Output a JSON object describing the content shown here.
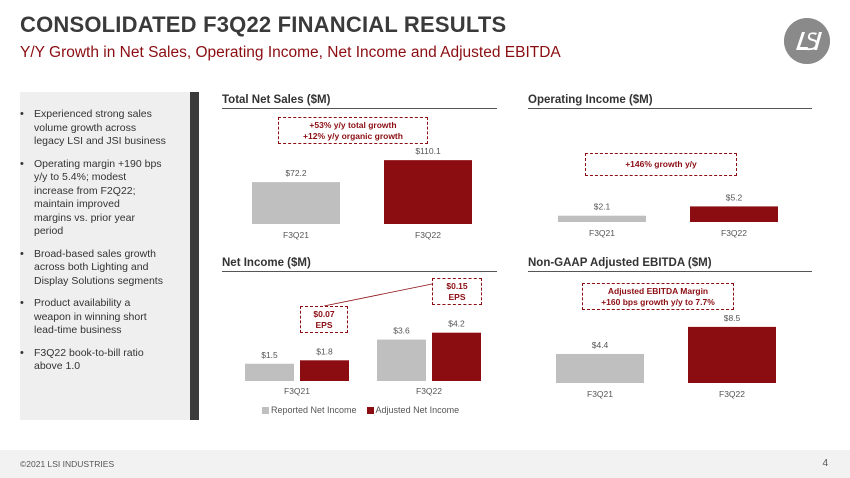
{
  "header": {
    "title": "CONSOLIDATED F3Q22 FINANCIAL RESULTS",
    "subtitle": "Y/Y Growth in Net Sales, Operating Income, Net Income and Adjusted EBITDA",
    "logo_icon": "lsi-logo-icon"
  },
  "sidebar": {
    "bullets": [
      [
        "Experienced strong sales",
        "volume growth across",
        "legacy LSI and JSI business"
      ],
      [
        "Operating margin +190 bps",
        "y/y to 5.4%; modest",
        "increase from F2Q22;",
        "maintain improved",
        "margins vs. prior year",
        "period"
      ],
      [
        "Broad-based sales growth",
        "across both Lighting and",
        "Display Solutions segments"
      ],
      [
        "Product availability a",
        "weapon in winning short",
        "lead-time business"
      ],
      [
        "F3Q22 book-to-bill ratio",
        "above 1.0"
      ]
    ]
  },
  "colors": {
    "gray": "#bfbfbf",
    "red": "#8b0d12",
    "text": "#555555"
  },
  "chart_data": [
    {
      "type": "bar",
      "title": "Total Net Sales ($M)",
      "categories": [
        "F3Q21",
        "F3Q22"
      ],
      "values": [
        72.2,
        110.1
      ],
      "labels": [
        "$72.2",
        "$110.1"
      ],
      "colors": [
        "#bfbfbf",
        "#8b0d12"
      ],
      "annotation": [
        "+53% y/y total growth",
        "+12% y/y organic growth"
      ]
    },
    {
      "type": "bar",
      "title": "Operating Income ($M)",
      "categories": [
        "F3Q21",
        "F3Q22"
      ],
      "values": [
        2.1,
        5.2
      ],
      "labels": [
        "$2.1",
        "$5.2"
      ],
      "colors": [
        "#bfbfbf",
        "#8b0d12"
      ],
      "annotation": [
        "+146% growth y/y"
      ]
    },
    {
      "type": "bar",
      "title": "Net Income ($M)",
      "categories": [
        "F3Q21",
        "F3Q22"
      ],
      "series": [
        {
          "name": "Reported Net Income",
          "values": [
            1.5,
            3.6
          ],
          "labels": [
            "$1.5",
            "$3.6"
          ],
          "color": "#bfbfbf"
        },
        {
          "name": "Adjusted Net Income",
          "values": [
            1.8,
            4.2
          ],
          "labels": [
            "$1.8",
            "$4.2"
          ],
          "color": "#8b0d12"
        }
      ],
      "annotations": [
        [
          "$0.07",
          "EPS"
        ],
        [
          "$0.15",
          "EPS"
        ]
      ],
      "legend": "bottom"
    },
    {
      "type": "bar",
      "title": "Non-GAAP Adjusted EBITDA ($M)",
      "categories": [
        "F3Q21",
        "F3Q22"
      ],
      "values": [
        4.4,
        8.5
      ],
      "labels": [
        "$4.4",
        "$8.5"
      ],
      "colors": [
        "#bfbfbf",
        "#8b0d12"
      ],
      "annotation": [
        "Adjusted EBITDA Margin",
        "+160 bps growth y/y to 7.7%"
      ]
    }
  ],
  "footer": {
    "copyright": "©2021 LSI INDUSTRIES",
    "page_number": "4"
  }
}
